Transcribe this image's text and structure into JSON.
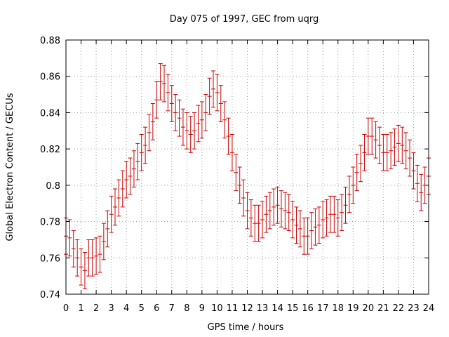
{
  "chart_data": {
    "type": "scatter",
    "title": "Day 075 of 1997, GEC from uqrg",
    "xlabel": "GPS time / hours",
    "ylabel": "Global Electron Content / GECUs",
    "xlim": [
      0,
      24
    ],
    "ylim": [
      0.74,
      0.88
    ],
    "x_ticks": [
      0,
      1,
      2,
      3,
      4,
      5,
      6,
      7,
      8,
      9,
      10,
      11,
      12,
      13,
      14,
      15,
      16,
      17,
      18,
      19,
      20,
      21,
      22,
      23,
      24
    ],
    "y_ticks": [
      0.74,
      0.76,
      0.78,
      0.8,
      0.82,
      0.84,
      0.86,
      0.88
    ],
    "y_tick_labels": [
      "0.74",
      "0.76",
      "0.78",
      "0.8",
      "0.82",
      "0.84",
      "0.86",
      "0.88"
    ],
    "grid": true,
    "error_bar_halfwidth": 0.01,
    "series": [
      {
        "color": "#cc0000",
        "points": [
          [
            0.0,
            0.772
          ],
          [
            0.25,
            0.771
          ],
          [
            0.5,
            0.765
          ],
          [
            0.75,
            0.76
          ],
          [
            1.0,
            0.755
          ],
          [
            1.25,
            0.753
          ],
          [
            1.5,
            0.76
          ],
          [
            1.75,
            0.76
          ],
          [
            2.0,
            0.761
          ],
          [
            2.25,
            0.762
          ],
          [
            2.5,
            0.769
          ],
          [
            2.75,
            0.776
          ],
          [
            3.0,
            0.784
          ],
          [
            3.25,
            0.788
          ],
          [
            3.5,
            0.793
          ],
          [
            3.75,
            0.798
          ],
          [
            4.0,
            0.803
          ],
          [
            4.25,
            0.805
          ],
          [
            4.5,
            0.809
          ],
          [
            4.75,
            0.813
          ],
          [
            5.0,
            0.818
          ],
          [
            5.25,
            0.822
          ],
          [
            5.5,
            0.829
          ],
          [
            5.75,
            0.835
          ],
          [
            6.0,
            0.847
          ],
          [
            6.25,
            0.857
          ],
          [
            6.5,
            0.856
          ],
          [
            6.75,
            0.851
          ],
          [
            7.0,
            0.845
          ],
          [
            7.25,
            0.84
          ],
          [
            7.5,
            0.837
          ],
          [
            7.75,
            0.832
          ],
          [
            8.0,
            0.83
          ],
          [
            8.25,
            0.828
          ],
          [
            8.5,
            0.83
          ],
          [
            8.75,
            0.834
          ],
          [
            9.0,
            0.836
          ],
          [
            9.25,
            0.84
          ],
          [
            9.5,
            0.849
          ],
          [
            9.75,
            0.853
          ],
          [
            10.0,
            0.851
          ],
          [
            10.25,
            0.845
          ],
          [
            10.5,
            0.836
          ],
          [
            10.75,
            0.827
          ],
          [
            11.0,
            0.818
          ],
          [
            11.25,
            0.807
          ],
          [
            11.5,
            0.8
          ],
          [
            11.75,
            0.793
          ],
          [
            12.0,
            0.786
          ],
          [
            12.25,
            0.782
          ],
          [
            12.5,
            0.779
          ],
          [
            12.75,
            0.779
          ],
          [
            13.0,
            0.781
          ],
          [
            13.25,
            0.784
          ],
          [
            13.5,
            0.786
          ],
          [
            13.75,
            0.788
          ],
          [
            14.0,
            0.789
          ],
          [
            14.25,
            0.787
          ],
          [
            14.5,
            0.786
          ],
          [
            14.75,
            0.785
          ],
          [
            15.0,
            0.781
          ],
          [
            15.25,
            0.778
          ],
          [
            15.5,
            0.776
          ],
          [
            15.75,
            0.772
          ],
          [
            16.0,
            0.772
          ],
          [
            16.25,
            0.775
          ],
          [
            16.5,
            0.777
          ],
          [
            16.75,
            0.778
          ],
          [
            17.0,
            0.781
          ],
          [
            17.25,
            0.782
          ],
          [
            17.5,
            0.784
          ],
          [
            17.75,
            0.784
          ],
          [
            18.0,
            0.782
          ],
          [
            18.25,
            0.785
          ],
          [
            18.5,
            0.789
          ],
          [
            18.75,
            0.795
          ],
          [
            19.0,
            0.8
          ],
          [
            19.25,
            0.807
          ],
          [
            19.5,
            0.812
          ],
          [
            19.75,
            0.818
          ],
          [
            20.0,
            0.827
          ],
          [
            20.25,
            0.827
          ],
          [
            20.5,
            0.825
          ],
          [
            20.75,
            0.822
          ],
          [
            21.0,
            0.818
          ],
          [
            21.25,
            0.818
          ],
          [
            21.5,
            0.819
          ],
          [
            21.75,
            0.821
          ],
          [
            22.0,
            0.823
          ],
          [
            22.25,
            0.822
          ],
          [
            22.5,
            0.819
          ],
          [
            22.75,
            0.815
          ],
          [
            23.0,
            0.808
          ],
          [
            23.25,
            0.801
          ],
          [
            23.5,
            0.796
          ],
          [
            23.75,
            0.8
          ],
          [
            24.0,
            0.805
          ]
        ]
      }
    ]
  }
}
